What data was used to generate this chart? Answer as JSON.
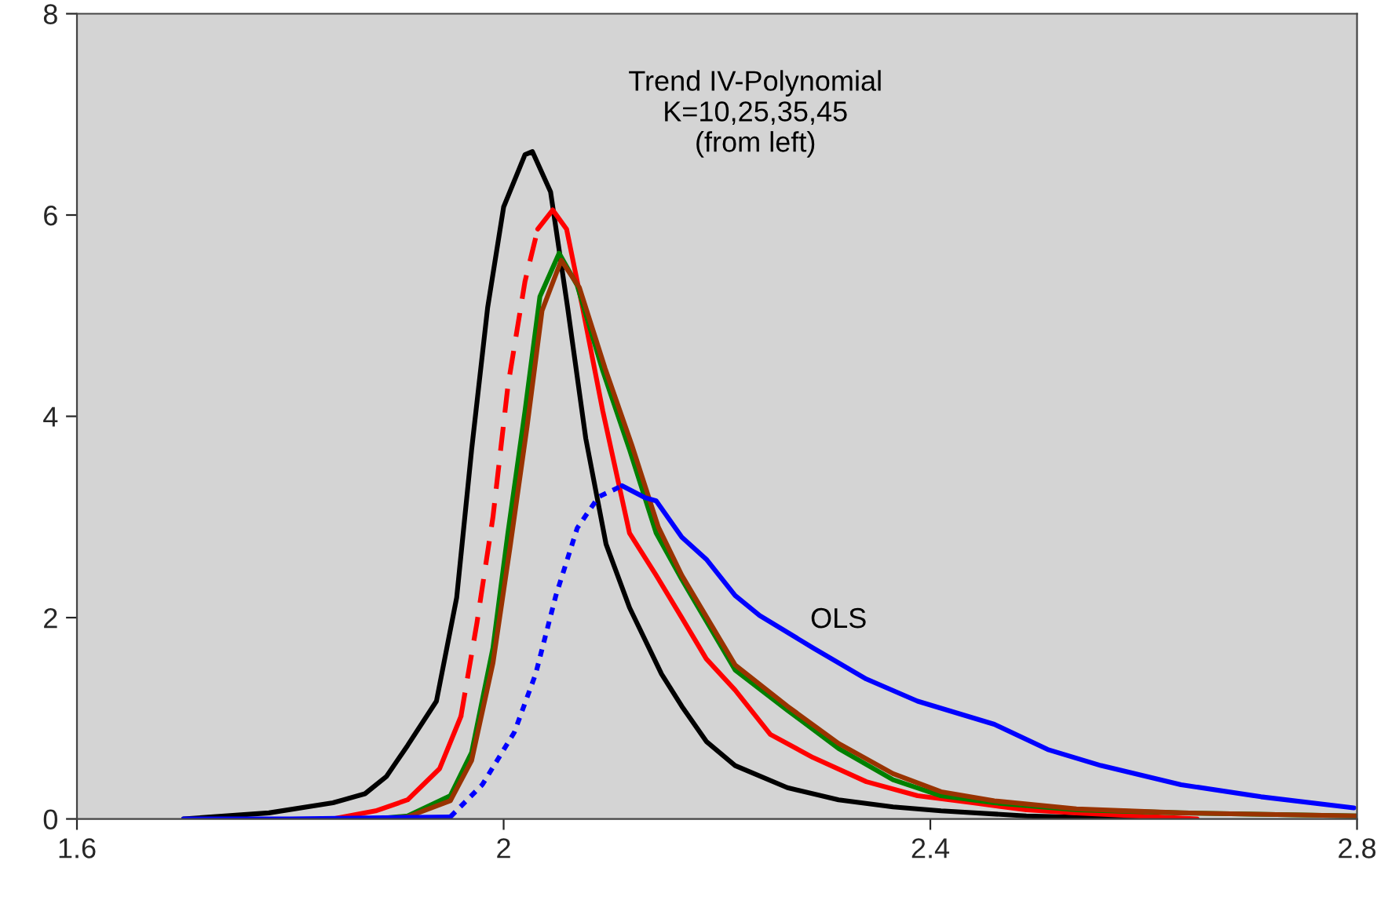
{
  "chart_data": {
    "type": "line",
    "xlim": [
      1.6,
      2.8
    ],
    "ylim": [
      0,
      8
    ],
    "xticks": [
      1.6,
      2,
      2.4,
      2.8
    ],
    "yticks": [
      0,
      2,
      4,
      6,
      8
    ],
    "grid": false,
    "marker": "none",
    "annotations": [
      "Trend IV-Polynomial\nK=10,25,35,45\n(from left)",
      "OLS"
    ],
    "series": [
      {
        "color": "#000000",
        "line_style": "solid",
        "x": [
          1.7,
          1.78,
          1.84,
          1.87,
          1.89,
          1.91,
          1.937,
          1.956,
          1.97,
          1.985,
          2.0,
          2.02,
          2.027,
          2.044,
          2.06,
          2.077,
          2.096,
          2.118,
          2.148,
          2.167,
          2.19,
          2.217,
          2.266,
          2.314,
          2.365,
          2.41,
          2.49,
          2.6
        ],
        "values": [
          0,
          0.06,
          0.16,
          0.25,
          0.42,
          0.73,
          1.17,
          2.2,
          3.67,
          5.08,
          6.08,
          6.6,
          6.63,
          6.23,
          5.08,
          3.78,
          2.73,
          2.1,
          1.44,
          1.12,
          0.77,
          0.53,
          0.31,
          0.19,
          0.12,
          0.08,
          0.03,
          0
        ]
      },
      {
        "color": "#ff0000",
        "line_style": "solid",
        "x": [
          1.84,
          1.88,
          1.91,
          1.94,
          1.96
        ],
        "values": [
          0,
          0.08,
          0.19,
          0.5,
          1.02
        ]
      },
      {
        "color": "#ff0000",
        "line_style": "dashed",
        "x": [
          1.96,
          1.975,
          1.99,
          2.004,
          2.02,
          2.032
        ],
        "values": [
          1.02,
          1.95,
          3.0,
          4.3,
          5.34,
          5.86
        ]
      },
      {
        "color": "#ff0000",
        "line_style": "solid",
        "x": [
          2.032,
          2.046,
          2.059,
          2.074,
          2.093,
          2.118,
          2.143,
          2.167,
          2.19,
          2.217,
          2.25,
          2.29,
          2.34,
          2.388,
          2.44,
          2.49,
          2.537,
          2.65
        ],
        "values": [
          5.86,
          6.05,
          5.86,
          5.08,
          4.05,
          2.84,
          2.42,
          2.0,
          1.59,
          1.28,
          0.84,
          0.61,
          0.37,
          0.23,
          0.16,
          0.09,
          0.06,
          0
        ]
      },
      {
        "color": "#008000",
        "line_style": "solid",
        "x": [
          1.88,
          1.91,
          1.95,
          1.97,
          1.99,
          2.004,
          2.02,
          2.034,
          2.052,
          2.069,
          2.093,
          2.118,
          2.143,
          2.167,
          2.217,
          2.266,
          2.314,
          2.365,
          2.41,
          2.46,
          2.537,
          2.635,
          2.8
        ],
        "values": [
          0,
          0.03,
          0.23,
          0.66,
          1.7,
          2.84,
          4.05,
          5.19,
          5.62,
          5.3,
          4.45,
          3.67,
          2.84,
          2.38,
          1.48,
          1.08,
          0.7,
          0.39,
          0.23,
          0.16,
          0.09,
          0.06,
          0.03
        ]
      },
      {
        "color": "#993300",
        "line_style": "solid",
        "x": [
          1.88,
          1.91,
          1.95,
          1.97,
          1.99,
          2.006,
          2.022,
          2.036,
          2.054,
          2.071,
          2.095,
          2.12,
          2.145,
          2.167,
          2.217,
          2.266,
          2.314,
          2.365,
          2.41,
          2.46,
          2.537,
          2.635,
          2.8
        ],
        "values": [
          0,
          0.02,
          0.18,
          0.58,
          1.55,
          2.7,
          3.9,
          5.05,
          5.55,
          5.28,
          4.48,
          3.72,
          2.9,
          2.42,
          1.53,
          1.12,
          0.75,
          0.45,
          0.27,
          0.18,
          0.1,
          0.06,
          0.03
        ]
      },
      {
        "color": "#0000ff",
        "line_style": "solid",
        "x": [
          1.7,
          1.8,
          1.95
        ],
        "values": [
          0,
          0,
          0.02
        ]
      },
      {
        "color": "#0000ff",
        "line_style": "dotted",
        "x": [
          1.95,
          1.98,
          2.01,
          2.03,
          2.049,
          2.069,
          2.089,
          2.111
        ],
        "values": [
          0.02,
          0.34,
          0.86,
          1.44,
          2.22,
          2.89,
          3.2,
          3.31
        ]
      },
      {
        "color": "#0000ff",
        "line_style": "solid",
        "x": [
          2.111,
          2.133,
          2.143,
          2.167,
          2.19,
          2.217,
          2.24,
          2.29,
          2.34,
          2.388,
          2.46,
          2.51,
          2.56,
          2.635,
          2.71,
          2.797
        ],
        "values": [
          3.31,
          3.19,
          3.16,
          2.8,
          2.58,
          2.22,
          2.02,
          1.7,
          1.39,
          1.17,
          0.94,
          0.69,
          0.53,
          0.34,
          0.22,
          0.11
        ]
      }
    ]
  }
}
